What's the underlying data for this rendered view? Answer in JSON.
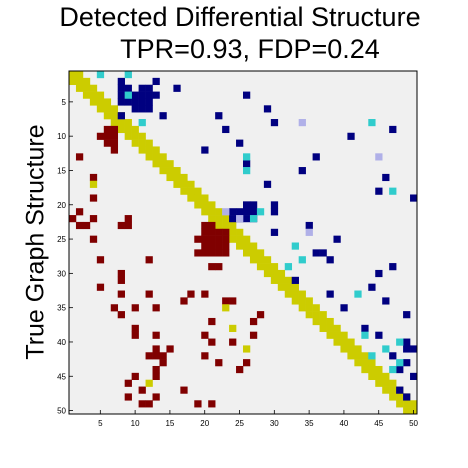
{
  "chart_data": {
    "type": "heatmap",
    "title": "Detected Differential Structure",
    "subtitle": "TPR=0.93, FDP=0.24",
    "xlabel": "",
    "ylabel": "True Graph Structure",
    "n": 50,
    "xticks": [
      5,
      10,
      15,
      20,
      25,
      30,
      35,
      40,
      45,
      50
    ],
    "yticks": [
      5,
      10,
      15,
      20,
      25,
      30,
      35,
      40,
      45,
      50
    ],
    "colors": {
      "background": "#f0f0f0",
      "diagonal": "#cccc00",
      "true_blocks": "#800000",
      "detected_edges": "#000080",
      "cyan": "#30cccc",
      "light": "#b0b0e8"
    },
    "lower_triangle_cells_row_col": [
      [
        9,
        6
      ],
      [
        9,
        7
      ],
      [
        10,
        5
      ],
      [
        10,
        6
      ],
      [
        10,
        7
      ],
      [
        11,
        6
      ],
      [
        11,
        7
      ],
      [
        12,
        7
      ],
      [
        13,
        2
      ],
      [
        16,
        4
      ],
      [
        19,
        4
      ],
      [
        21,
        2
      ],
      [
        22,
        1
      ],
      [
        22,
        4
      ],
      [
        22,
        9
      ],
      [
        23,
        2
      ],
      [
        23,
        3
      ],
      [
        23,
        8
      ],
      [
        23,
        9
      ],
      [
        23,
        20
      ],
      [
        23,
        21
      ],
      [
        24,
        20
      ],
      [
        24,
        21
      ],
      [
        24,
        22
      ],
      [
        24,
        23
      ],
      [
        25,
        4
      ],
      [
        25,
        19
      ],
      [
        25,
        20
      ],
      [
        25,
        21
      ],
      [
        25,
        22
      ],
      [
        25,
        23
      ],
      [
        26,
        20
      ],
      [
        26,
        21
      ],
      [
        26,
        22
      ],
      [
        26,
        23
      ],
      [
        27,
        19
      ],
      [
        27,
        20
      ],
      [
        27,
        21
      ],
      [
        27,
        22
      ],
      [
        27,
        23
      ],
      [
        28,
        5
      ],
      [
        28,
        12
      ],
      [
        29,
        21
      ],
      [
        29,
        22
      ],
      [
        30,
        8
      ],
      [
        31,
        8
      ],
      [
        32,
        5
      ],
      [
        33,
        8
      ],
      [
        33,
        12
      ],
      [
        33,
        18
      ],
      [
        33,
        20
      ],
      [
        34,
        17
      ],
      [
        34,
        23
      ],
      [
        34,
        24
      ],
      [
        35,
        7
      ],
      [
        35,
        10
      ],
      [
        35,
        13
      ],
      [
        36,
        8
      ],
      [
        36,
        28
      ],
      [
        37,
        21
      ],
      [
        37,
        27
      ],
      [
        38,
        10
      ],
      [
        39,
        10
      ],
      [
        39,
        13
      ],
      [
        39,
        20
      ],
      [
        39,
        27
      ],
      [
        40,
        21
      ],
      [
        40,
        24
      ],
      [
        41,
        13
      ],
      [
        41,
        15
      ],
      [
        42,
        12
      ],
      [
        42,
        13
      ],
      [
        42,
        14
      ],
      [
        42,
        20
      ],
      [
        43,
        14
      ],
      [
        43,
        22
      ],
      [
        43,
        26
      ],
      [
        44,
        13
      ],
      [
        44,
        25
      ],
      [
        45,
        10
      ],
      [
        45,
        13
      ],
      [
        46,
        9
      ],
      [
        47,
        11
      ],
      [
        47,
        17
      ],
      [
        48,
        9
      ],
      [
        48,
        13
      ],
      [
        49,
        11
      ],
      [
        49,
        12
      ],
      [
        49,
        19
      ],
      [
        49,
        21
      ]
    ],
    "lower_triangle_yellow_cells": [
      [
        17,
        4
      ],
      [
        35,
        23
      ],
      [
        46,
        12
      ],
      [
        38,
        24
      ],
      [
        41,
        26
      ]
    ],
    "upper_triangle_navy_cells": [
      [
        2,
        8
      ],
      [
        2,
        13
      ],
      [
        3,
        8
      ],
      [
        3,
        9
      ],
      [
        3,
        11
      ],
      [
        3,
        12
      ],
      [
        3,
        16
      ],
      [
        4,
        8
      ],
      [
        4,
        9
      ],
      [
        4,
        10
      ],
      [
        4,
        11
      ],
      [
        4,
        12
      ],
      [
        4,
        13
      ],
      [
        4,
        26
      ],
      [
        5,
        8
      ],
      [
        5,
        9
      ],
      [
        5,
        10
      ],
      [
        5,
        11
      ],
      [
        5,
        12
      ],
      [
        6,
        10
      ],
      [
        6,
        11
      ],
      [
        6,
        12
      ],
      [
        6,
        29
      ],
      [
        7,
        8
      ],
      [
        7,
        14
      ],
      [
        7,
        22
      ],
      [
        8,
        30
      ],
      [
        9,
        23
      ],
      [
        9,
        47
      ],
      [
        10,
        41
      ],
      [
        11,
        25
      ],
      [
        12,
        20
      ],
      [
        13,
        36
      ],
      [
        14,
        26
      ],
      [
        15,
        34
      ],
      [
        16,
        46
      ],
      [
        17,
        29
      ],
      [
        18,
        45
      ],
      [
        19,
        50
      ],
      [
        20,
        26
      ],
      [
        20,
        27
      ],
      [
        20,
        30
      ],
      [
        21,
        24
      ],
      [
        21,
        25
      ],
      [
        21,
        26
      ],
      [
        21,
        27
      ],
      [
        21,
        30
      ],
      [
        22,
        24
      ],
      [
        22,
        25
      ],
      [
        22,
        26
      ],
      [
        22,
        27
      ],
      [
        23,
        35
      ],
      [
        24,
        30
      ],
      [
        25,
        39
      ],
      [
        27,
        36
      ],
      [
        27,
        37
      ],
      [
        28,
        38
      ],
      [
        29,
        47
      ],
      [
        30,
        45
      ],
      [
        31,
        33
      ],
      [
        32,
        44
      ],
      [
        33,
        38
      ],
      [
        34,
        46
      ],
      [
        35,
        40
      ],
      [
        36,
        49
      ],
      [
        38,
        43
      ],
      [
        39,
        45
      ],
      [
        40,
        49
      ],
      [
        41,
        49
      ],
      [
        41,
        50
      ],
      [
        42,
        47
      ],
      [
        43,
        49
      ],
      [
        44,
        48
      ],
      [
        45,
        50
      ],
      [
        47,
        48
      ],
      [
        48,
        49
      ]
    ],
    "upper_triangle_cyan_cells": [
      [
        1,
        5
      ],
      [
        1,
        9
      ],
      [
        4,
        9
      ],
      [
        8,
        11
      ],
      [
        13,
        26
      ],
      [
        15,
        26
      ],
      [
        18,
        47
      ],
      [
        21,
        28
      ],
      [
        22,
        27
      ],
      [
        26,
        33
      ],
      [
        28,
        34
      ],
      [
        29,
        32
      ],
      [
        33,
        42
      ],
      [
        39,
        43
      ],
      [
        40,
        48
      ],
      [
        41,
        46
      ],
      [
        42,
        44
      ],
      [
        43,
        48
      ],
      [
        44,
        47
      ],
      [
        8,
        44
      ]
    ],
    "upper_triangle_light_cells": [
      [
        8,
        34
      ],
      [
        21,
        23
      ],
      [
        22,
        25
      ],
      [
        24,
        35
      ],
      [
        13,
        45
      ]
    ]
  }
}
